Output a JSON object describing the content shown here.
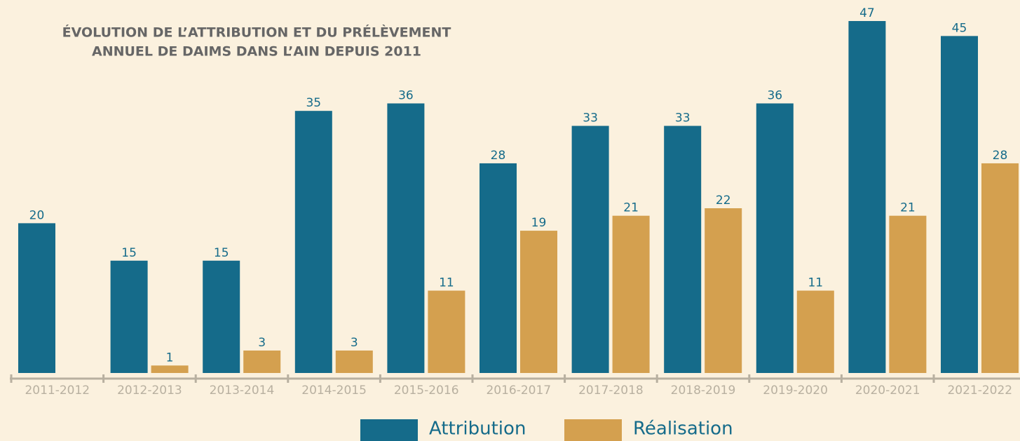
{
  "chart_data": {
    "type": "bar",
    "title": [
      "ÉVOLUTION DE L’ATTRIBUTION ET DU PRÉLÈVEMENT",
      "ANNUEL DE DAIMS  DANS L’AIN DEPUIS 2011"
    ],
    "categories": [
      "2011-2012",
      "2012-2013",
      "2013-2014",
      "2014-2015",
      "2015-2016",
      "2016-2017",
      "2017-2018",
      "2018-2019",
      "2019-2020",
      "2020-2021",
      "2021-2022"
    ],
    "series": [
      {
        "name": "Attribution",
        "color": "#156b8a",
        "values": [
          20,
          15,
          15,
          35,
          36,
          28,
          33,
          33,
          36,
          47,
          45
        ]
      },
      {
        "name": "Réalisation",
        "color": "#d4a04f",
        "values": [
          null,
          1,
          3,
          3,
          11,
          19,
          21,
          22,
          11,
          21,
          28
        ]
      }
    ]
  }
}
